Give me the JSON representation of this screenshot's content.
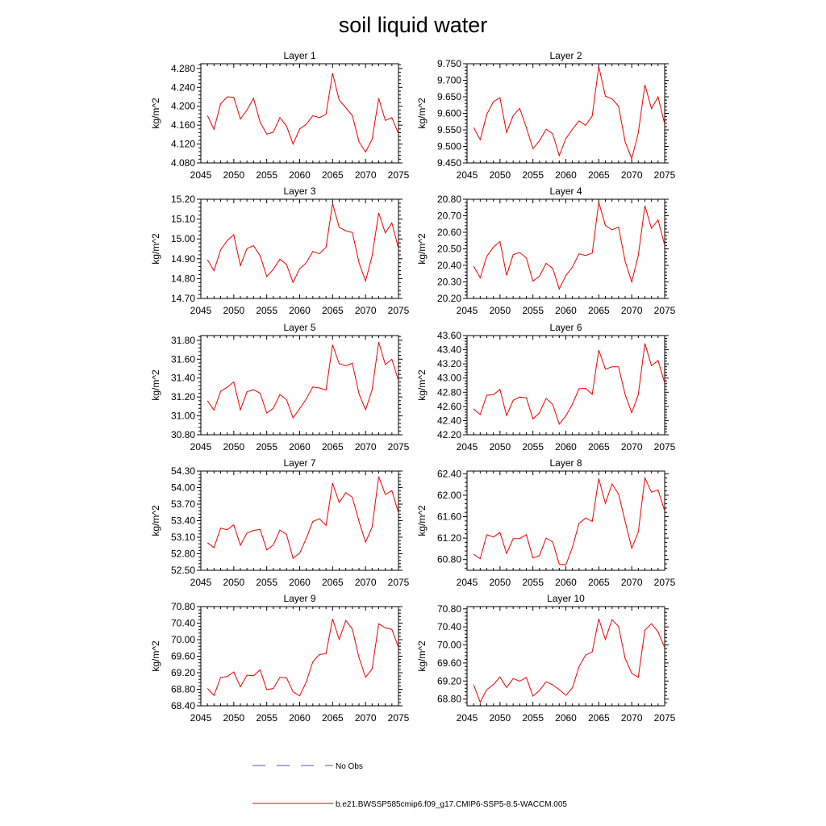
{
  "title": "soil liquid water",
  "legend": {
    "obs_label": "No Obs",
    "obs_color": "#5555aa",
    "model_label": "b.e21.BWSSP585cmip6.f09_g17.CMIP6-SSP5-8.5-WACCM.005",
    "model_color": "#ee0000"
  },
  "chart_data": [
    {
      "type": "line",
      "title": "Layer 1",
      "ylabel": "kg/m^2",
      "xlabel": "",
      "xlim": [
        2045,
        2075
      ],
      "xticks": [
        2045,
        2050,
        2055,
        2060,
        2065,
        2070,
        2075
      ],
      "ylim": [
        4.08,
        4.29
      ],
      "yticks": [
        4.08,
        4.12,
        4.16,
        4.2,
        4.24,
        4.28
      ],
      "ydec": 3,
      "x": [
        2046,
        2047,
        2048,
        2049,
        2050,
        2051,
        2052,
        2053,
        2054,
        2055,
        2056,
        2057,
        2058,
        2059,
        2060,
        2061,
        2062,
        2063,
        2064,
        2065,
        2066,
        2067,
        2068,
        2069,
        2070,
        2071,
        2072,
        2073,
        2074,
        2075
      ],
      "values": [
        4.18,
        4.151,
        4.205,
        4.22,
        4.219,
        4.173,
        4.192,
        4.217,
        4.166,
        4.141,
        4.145,
        4.176,
        4.158,
        4.12,
        4.152,
        4.162,
        4.18,
        4.176,
        4.183,
        4.27,
        4.213,
        4.197,
        4.18,
        4.125,
        4.103,
        4.13,
        4.217,
        4.17,
        4.176,
        4.142
      ],
      "series": [
        {
          "name": "b.e21.BWSSP585cmip6.f09_g17.CMIP6-SSP5-8.5-WACCM.005"
        }
      ]
    },
    {
      "type": "line",
      "title": "Layer 2",
      "ylabel": "kg/m^2",
      "xlabel": "",
      "xlim": [
        2045,
        2075
      ],
      "xticks": [
        2045,
        2050,
        2055,
        2060,
        2065,
        2070,
        2075
      ],
      "ylim": [
        9.45,
        9.75
      ],
      "yticks": [
        9.45,
        9.5,
        9.55,
        9.6,
        9.65,
        9.7,
        9.75
      ],
      "ydec": 3,
      "x": [
        2046,
        2047,
        2048,
        2049,
        2050,
        2051,
        2052,
        2053,
        2054,
        2055,
        2056,
        2057,
        2058,
        2059,
        2060,
        2061,
        2062,
        2063,
        2064,
        2065,
        2066,
        2067,
        2068,
        2069,
        2070,
        2071,
        2072,
        2073,
        2074,
        2075
      ],
      "values": [
        9.557,
        9.52,
        9.597,
        9.635,
        9.647,
        9.542,
        9.593,
        9.615,
        9.557,
        9.493,
        9.517,
        9.552,
        9.538,
        9.472,
        9.524,
        9.552,
        9.577,
        9.564,
        9.592,
        9.742,
        9.652,
        9.644,
        9.622,
        9.514,
        9.463,
        9.541,
        9.686,
        9.614,
        9.65,
        9.568
      ],
      "series": [
        {
          "name": "b.e21.BWSSP585cmip6.f09_g17.CMIP6-SSP5-8.5-WACCM.005"
        }
      ]
    },
    {
      "type": "line",
      "title": "Layer 3",
      "ylabel": "kg/m^2",
      "xlabel": "",
      "xlim": [
        2045,
        2075
      ],
      "xticks": [
        2045,
        2050,
        2055,
        2060,
        2065,
        2070,
        2075
      ],
      "ylim": [
        14.7,
        15.2
      ],
      "yticks": [
        14.7,
        14.8,
        14.9,
        15.0,
        15.1,
        15.2
      ],
      "ydec": 2,
      "x": [
        2046,
        2047,
        2048,
        2049,
        2050,
        2051,
        2052,
        2053,
        2054,
        2055,
        2056,
        2057,
        2058,
        2059,
        2060,
        2061,
        2062,
        2063,
        2064,
        2065,
        2066,
        2067,
        2068,
        2069,
        2070,
        2071,
        2072,
        2073,
        2074,
        2075
      ],
      "values": [
        14.895,
        14.84,
        14.945,
        14.992,
        15.021,
        14.866,
        14.952,
        14.966,
        14.915,
        14.811,
        14.846,
        14.898,
        14.871,
        14.781,
        14.849,
        14.88,
        14.937,
        14.925,
        14.958,
        15.178,
        15.058,
        15.041,
        15.033,
        14.881,
        14.788,
        14.915,
        15.131,
        15.03,
        15.081,
        14.952
      ],
      "series": [
        {
          "name": "b.e21.BWSSP585cmip6.f09_g17.CMIP6-SSP5-8.5-WACCM.005"
        }
      ]
    },
    {
      "type": "line",
      "title": "Layer 4",
      "ylabel": "kg/m^2",
      "xlabel": "",
      "xlim": [
        2045,
        2075
      ],
      "xticks": [
        2045,
        2050,
        2055,
        2060,
        2065,
        2070,
        2075
      ],
      "ylim": [
        20.2,
        20.8
      ],
      "yticks": [
        20.2,
        20.3,
        20.4,
        20.5,
        20.6,
        20.7,
        20.8
      ],
      "ydec": 2,
      "x": [
        2046,
        2047,
        2048,
        2049,
        2050,
        2051,
        2052,
        2053,
        2054,
        2055,
        2056,
        2057,
        2058,
        2059,
        2060,
        2061,
        2062,
        2063,
        2064,
        2065,
        2066,
        2067,
        2068,
        2069,
        2070,
        2071,
        2072,
        2073,
        2074,
        2075
      ],
      "values": [
        20.395,
        20.325,
        20.455,
        20.51,
        20.545,
        20.34,
        20.465,
        20.478,
        20.445,
        20.305,
        20.335,
        20.412,
        20.382,
        20.257,
        20.338,
        20.39,
        20.47,
        20.46,
        20.474,
        20.782,
        20.642,
        20.615,
        20.632,
        20.425,
        20.3,
        20.46,
        20.76,
        20.623,
        20.675,
        20.522
      ],
      "series": [
        {
          "name": "b.e21.BWSSP585cmip6.f09_g17.CMIP6-SSP5-8.5-WACCM.005"
        }
      ]
    },
    {
      "type": "line",
      "title": "Layer 5",
      "ylabel": "kg/m^2",
      "xlabel": "",
      "xlim": [
        2045,
        2075
      ],
      "xticks": [
        2045,
        2050,
        2055,
        2060,
        2065,
        2070,
        2075
      ],
      "ylim": [
        30.8,
        31.85
      ],
      "yticks": [
        30.8,
        31.0,
        31.2,
        31.4,
        31.6,
        31.8
      ],
      "ydec": 2,
      "x": [
        2046,
        2047,
        2048,
        2049,
        2050,
        2051,
        2052,
        2053,
        2054,
        2055,
        2056,
        2057,
        2058,
        2059,
        2060,
        2061,
        2062,
        2063,
        2064,
        2065,
        2066,
        2067,
        2068,
        2069,
        2070,
        2071,
        2072,
        2073,
        2074,
        2075
      ],
      "values": [
        31.16,
        31.06,
        31.26,
        31.303,
        31.36,
        31.064,
        31.255,
        31.277,
        31.24,
        31.03,
        31.08,
        31.225,
        31.171,
        30.979,
        31.077,
        31.18,
        31.305,
        31.295,
        31.274,
        31.752,
        31.552,
        31.53,
        31.557,
        31.235,
        31.065,
        31.275,
        31.782,
        31.543,
        31.6,
        31.372
      ],
      "series": [
        {
          "name": "b.e21.BWSSP585cmip6.f09_g17.CMIP6-SSP5-8.5-WACCM.005"
        }
      ]
    },
    {
      "type": "line",
      "title": "Layer 6",
      "ylabel": "kg/m^2",
      "xlabel": "",
      "xlim": [
        2045,
        2075
      ],
      "xticks": [
        2045,
        2050,
        2055,
        2060,
        2065,
        2070,
        2075
      ],
      "ylim": [
        42.2,
        43.6
      ],
      "yticks": [
        42.2,
        42.4,
        42.6,
        42.8,
        43.0,
        43.2,
        43.4,
        43.6
      ],
      "ydec": 2,
      "x": [
        2046,
        2047,
        2048,
        2049,
        2050,
        2051,
        2052,
        2053,
        2054,
        2055,
        2056,
        2057,
        2058,
        2059,
        2060,
        2061,
        2062,
        2063,
        2064,
        2065,
        2066,
        2067,
        2068,
        2069,
        2070,
        2071,
        2072,
        2073,
        2074,
        2075
      ],
      "values": [
        42.565,
        42.485,
        42.758,
        42.766,
        42.84,
        42.472,
        42.686,
        42.733,
        42.723,
        42.424,
        42.51,
        42.713,
        42.628,
        42.349,
        42.466,
        42.632,
        42.85,
        42.855,
        42.77,
        43.395,
        43.125,
        43.16,
        43.16,
        42.768,
        42.51,
        42.767,
        43.488,
        43.173,
        43.25,
        42.932
      ],
      "series": [
        {
          "name": "b.e21.BWSSP585cmip6.f09_g17.CMIP6-SSP5-8.5-WACCM.005"
        }
      ]
    },
    {
      "type": "line",
      "title": "Layer 7",
      "ylabel": "kg/m^2",
      "xlabel": "",
      "xlim": [
        2045,
        2075
      ],
      "xticks": [
        2045,
        2050,
        2055,
        2060,
        2065,
        2070,
        2075
      ],
      "ylim": [
        52.5,
        54.3
      ],
      "yticks": [
        52.5,
        52.8,
        53.1,
        53.4,
        53.7,
        54.0,
        54.3
      ],
      "ydec": 2,
      "x": [
        2046,
        2047,
        2048,
        2049,
        2050,
        2051,
        2052,
        2053,
        2054,
        2055,
        2056,
        2057,
        2058,
        2059,
        2060,
        2061,
        2062,
        2063,
        2064,
        2065,
        2066,
        2067,
        2068,
        2069,
        2070,
        2071,
        2072,
        2073,
        2074,
        2075
      ],
      "values": [
        53.0,
        52.91,
        53.265,
        53.235,
        53.325,
        52.955,
        53.175,
        53.225,
        53.24,
        52.87,
        52.96,
        53.23,
        53.15,
        52.72,
        52.81,
        53.08,
        53.385,
        53.435,
        53.315,
        54.08,
        53.73,
        53.91,
        53.825,
        53.39,
        53.01,
        53.285,
        54.2,
        53.875,
        53.945,
        53.545
      ],
      "series": [
        {
          "name": "b.e21.BWSSP585cmip6.f09_g17.CMIP6-SSP5-8.5-WACCM.005"
        }
      ]
    },
    {
      "type": "line",
      "title": "Layer 8",
      "ylabel": "kg/m^2",
      "xlabel": "",
      "xlim": [
        2045,
        2075
      ],
      "xticks": [
        2045,
        2050,
        2055,
        2060,
        2065,
        2070,
        2075
      ],
      "ylim": [
        60.6,
        62.45
      ],
      "yticks": [
        60.8,
        61.2,
        61.6,
        62.0,
        62.4
      ],
      "ydec": 2,
      "x": [
        2046,
        2047,
        2048,
        2049,
        2050,
        2051,
        2052,
        2053,
        2054,
        2055,
        2056,
        2057,
        2058,
        2059,
        2060,
        2061,
        2062,
        2063,
        2064,
        2065,
        2066,
        2067,
        2068,
        2069,
        2070,
        2071,
        2072,
        2073,
        2074,
        2075
      ],
      "values": [
        60.9,
        60.815,
        61.265,
        61.22,
        61.305,
        60.915,
        61.19,
        61.19,
        61.265,
        60.83,
        60.875,
        61.2,
        61.13,
        60.715,
        60.7,
        61.03,
        61.475,
        61.575,
        61.51,
        62.31,
        61.845,
        62.21,
        62.025,
        61.515,
        61.01,
        61.315,
        62.32,
        62.055,
        62.1,
        61.705
      ],
      "series": [
        {
          "name": "b.e21.BWSSP585cmip6.f09_g17.CMIP6-SSP5-8.5-WACCM.005"
        }
      ]
    },
    {
      "type": "line",
      "title": "Layer 9",
      "ylabel": "kg/m^2",
      "xlabel": "",
      "xlim": [
        2045,
        2075
      ],
      "xticks": [
        2045,
        2050,
        2055,
        2060,
        2065,
        2070,
        2075
      ],
      "ylim": [
        68.4,
        70.8
      ],
      "yticks": [
        68.4,
        68.8,
        69.2,
        69.6,
        70.0,
        70.4,
        70.8
      ],
      "ydec": 2,
      "x": [
        2046,
        2047,
        2048,
        2049,
        2050,
        2051,
        2052,
        2053,
        2054,
        2055,
        2056,
        2057,
        2058,
        2059,
        2060,
        2061,
        2062,
        2063,
        2064,
        2065,
        2066,
        2067,
        2068,
        2069,
        2070,
        2071,
        2072,
        2073,
        2074,
        2075
      ],
      "values": [
        68.82,
        68.65,
        69.085,
        69.11,
        69.22,
        68.86,
        69.14,
        69.125,
        69.27,
        68.79,
        68.82,
        69.09,
        69.08,
        68.735,
        68.64,
        68.98,
        69.465,
        69.64,
        69.665,
        70.5,
        70.005,
        70.465,
        70.255,
        69.57,
        69.09,
        69.29,
        70.385,
        70.285,
        70.25,
        69.81
      ],
      "series": [
        {
          "name": "b.e21.BWSSP585cmip6.f09_g17.CMIP6-SSP5-8.5-WACCM.005"
        }
      ]
    },
    {
      "type": "line",
      "title": "Layer 10",
      "ylabel": "kg/m^2",
      "xlabel": "",
      "xlim": [
        2045,
        2075
      ],
      "xticks": [
        2045,
        2050,
        2055,
        2060,
        2065,
        2070,
        2075
      ],
      "ylim": [
        68.65,
        70.85
      ],
      "yticks": [
        68.8,
        69.2,
        69.6,
        70.0,
        70.4,
        70.8
      ],
      "ydec": 2,
      "x": [
        2046,
        2047,
        2048,
        2049,
        2050,
        2051,
        2052,
        2053,
        2054,
        2055,
        2056,
        2057,
        2058,
        2059,
        2060,
        2061,
        2062,
        2063,
        2064,
        2065,
        2066,
        2067,
        2068,
        2069,
        2070,
        2071,
        2072,
        2073,
        2074,
        2075
      ],
      "values": [
        69.115,
        68.73,
        69.01,
        69.12,
        69.29,
        69.055,
        69.255,
        69.195,
        69.28,
        68.865,
        68.99,
        69.185,
        69.115,
        69.01,
        68.88,
        69.05,
        69.52,
        69.775,
        69.845,
        70.58,
        70.12,
        70.56,
        70.41,
        69.7,
        69.37,
        69.285,
        70.33,
        70.47,
        70.29,
        69.94
      ],
      "series": [
        {
          "name": "b.e21.BWSSP585cmip6.f09_g17.CMIP6-SSP5-8.5-WACCM.005"
        }
      ]
    }
  ]
}
